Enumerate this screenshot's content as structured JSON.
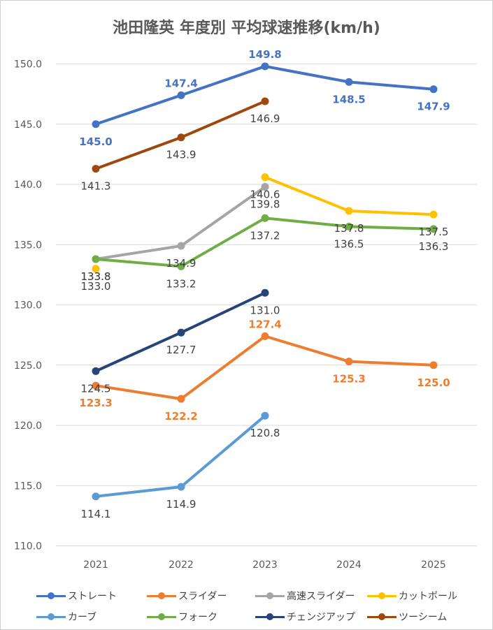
{
  "chart_data": {
    "type": "line",
    "title": "池田隆英 年度別 平均球速推移(km/h)",
    "categories": [
      "2021",
      "2022",
      "2023",
      "2024",
      "2025"
    ],
    "ylim": [
      110.0,
      150.0
    ],
    "yticks": [
      "110.0",
      "115.0",
      "120.0",
      "125.0",
      "130.0",
      "135.0",
      "140.0",
      "145.0",
      "150.0"
    ],
    "grid": true,
    "legend_position": "bottom",
    "series": [
      {
        "name": "ストレート",
        "color": "#4472C4",
        "values": [
          145.0,
          147.4,
          149.8,
          148.5,
          147.9
        ],
        "labels": [
          "145.0",
          "147.4",
          "149.8",
          "148.5",
          "147.9"
        ]
      },
      {
        "name": "スライダー",
        "color": "#ED7D31",
        "values": [
          123.3,
          122.2,
          127.4,
          125.3,
          125.0
        ],
        "labels": [
          "123.3",
          "122.2",
          "127.4",
          "125.3",
          "125.0"
        ]
      },
      {
        "name": "高速スライダー",
        "color": "#A5A5A5",
        "values": [
          133.8,
          134.9,
          139.8,
          null,
          null
        ],
        "labels": [
          "133.8",
          "134.9",
          "139.8",
          "",
          ""
        ]
      },
      {
        "name": "カットボール",
        "color": "#FFC000",
        "values": [
          133.0,
          null,
          140.6,
          137.8,
          137.5
        ],
        "labels": [
          "133.0",
          "",
          "140.6",
          "137.8",
          "137.5"
        ]
      },
      {
        "name": "カーブ",
        "color": "#5B9BD5",
        "values": [
          114.1,
          114.9,
          120.8,
          null,
          null
        ],
        "labels": [
          "114.1",
          "114.9",
          "120.8",
          "",
          ""
        ]
      },
      {
        "name": "フォーク",
        "color": "#70AD47",
        "values": [
          133.8,
          133.2,
          137.2,
          136.5,
          136.3
        ],
        "labels": [
          "133.8",
          "133.2",
          "137.2",
          "136.5",
          "136.3"
        ]
      },
      {
        "name": "チェンジアップ",
        "color": "#264478",
        "values": [
          124.5,
          127.7,
          131.0,
          null,
          null
        ],
        "labels": [
          "124.5",
          "127.7",
          "131.0",
          "",
          ""
        ]
      },
      {
        "name": "ツーシーム",
        "color": "#9E480E",
        "values": [
          141.3,
          143.9,
          146.9,
          null,
          null
        ],
        "labels": [
          "141.3",
          "143.9",
          "146.9",
          "",
          ""
        ]
      }
    ]
  }
}
